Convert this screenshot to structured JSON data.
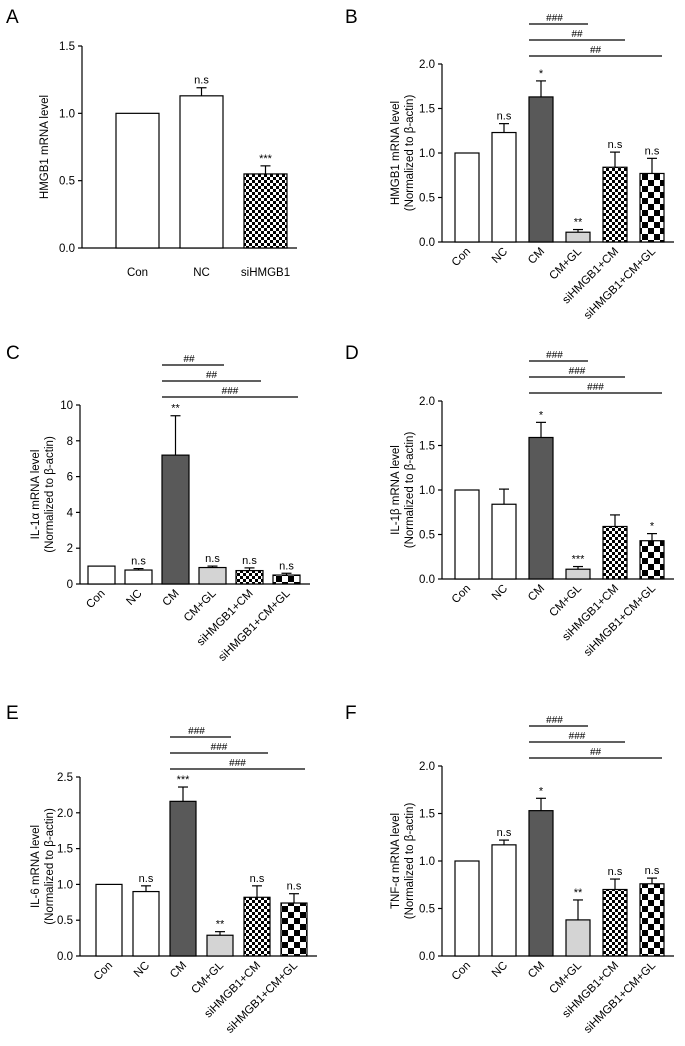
{
  "colors": {
    "white": "#ffffff",
    "dark": "#595959",
    "light": "#d4d4d4",
    "axis": "#000000"
  },
  "chart_data": [
    {
      "panel": "A",
      "type": "bar",
      "categories": [
        "Con",
        "NC",
        "siHMGB1"
      ],
      "values": [
        1.0,
        1.13,
        0.55
      ],
      "errors": [
        0,
        0.06,
        0.06
      ],
      "fills": [
        "white",
        "white",
        "check"
      ],
      "sig": [
        "",
        "n.s",
        "***"
      ],
      "ylim": [
        0,
        1.5
      ],
      "yticks": [
        0,
        0.5,
        1.0,
        1.5
      ],
      "ytick_labels": [
        "0.0",
        "0.5",
        "1.0",
        "1.5"
      ],
      "ylabel": [
        "HMGB1 mRNA level"
      ],
      "brackets": [],
      "rotate_x": false
    },
    {
      "panel": "B",
      "type": "bar",
      "categories": [
        "Con",
        "NC",
        "CM",
        "CM+GL",
        "siHMGB1+CM",
        "siHMGB1+CM+GL"
      ],
      "values": [
        1.0,
        1.23,
        1.63,
        0.11,
        0.84,
        0.77
      ],
      "errors": [
        0,
        0.1,
        0.18,
        0.03,
        0.17,
        0.17
      ],
      "fills": [
        "white",
        "white",
        "dark",
        "light",
        "check",
        "bigcheck"
      ],
      "sig": [
        "",
        "n.s",
        "*",
        "**",
        "n.s",
        "n.s"
      ],
      "ylim": [
        0,
        2.0
      ],
      "yticks": [
        0,
        0.5,
        1.0,
        1.5,
        2.0
      ],
      "ytick_labels": [
        "0.0",
        "0.5",
        "1.0",
        "1.5",
        "2.0"
      ],
      "ylabel": [
        "HMGB1 mRNA level",
        "(Normalized to β-actin)"
      ],
      "brackets": [
        {
          "to": 3,
          "label": "###"
        },
        {
          "to": 4,
          "label": "##"
        },
        {
          "to": 5,
          "label": "##"
        }
      ],
      "rotate_x": true
    },
    {
      "panel": "C",
      "type": "bar",
      "categories": [
        "Con",
        "NC",
        "CM",
        "CM+GL",
        "siHMGB1+CM",
        "siHMGB1+CM+GL"
      ],
      "values": [
        1.0,
        0.78,
        7.2,
        0.92,
        0.75,
        0.5
      ],
      "errors": [
        0,
        0.08,
        2.2,
        0.08,
        0.15,
        0.1
      ],
      "fills": [
        "white",
        "white",
        "dark",
        "light",
        "check",
        "bigcheck"
      ],
      "sig": [
        "",
        "n.s",
        "**",
        "n.s",
        "n.s",
        "n.s"
      ],
      "ylim": [
        0,
        10
      ],
      "yticks": [
        0,
        2,
        4,
        6,
        8,
        10
      ],
      "ytick_labels": [
        "0",
        "2",
        "4",
        "6",
        "8",
        "10"
      ],
      "ylabel": [
        "IL-1α mRNA level",
        "(Normalized to β-actin)"
      ],
      "brackets": [
        {
          "to": 3,
          "label": "##"
        },
        {
          "to": 4,
          "label": "##"
        },
        {
          "to": 5,
          "label": "###"
        }
      ],
      "rotate_x": true
    },
    {
      "panel": "D",
      "type": "bar",
      "categories": [
        "Con",
        "NC",
        "CM",
        "CM+GL",
        "siHMGB1+CM",
        "siHMGB1+CM+GL"
      ],
      "values": [
        1.0,
        0.84,
        1.59,
        0.11,
        0.59,
        0.43
      ],
      "errors": [
        0,
        0.17,
        0.17,
        0.03,
        0.13,
        0.08
      ],
      "fills": [
        "white",
        "white",
        "dark",
        "light",
        "check",
        "bigcheck"
      ],
      "sig": [
        "",
        "",
        "*",
        "***",
        "",
        "*"
      ],
      "ylim": [
        0,
        2.0
      ],
      "yticks": [
        0,
        0.5,
        1.0,
        1.5,
        2.0
      ],
      "ytick_labels": [
        "0.0",
        "0.5",
        "1.0",
        "1.5",
        "2.0"
      ],
      "ylabel": [
        "IL-1β mRNA level",
        "(Normalized to β-actin)"
      ],
      "brackets": [
        {
          "to": 3,
          "label": "###"
        },
        {
          "to": 4,
          "label": "###"
        },
        {
          "to": 5,
          "label": "###"
        }
      ],
      "rotate_x": true
    },
    {
      "panel": "E",
      "type": "bar",
      "categories": [
        "Con",
        "NC",
        "CM",
        "CM+GL",
        "siHMGB1+CM",
        "siHMGB1+CM+GL"
      ],
      "values": [
        1.0,
        0.9,
        2.16,
        0.29,
        0.82,
        0.74
      ],
      "errors": [
        0,
        0.08,
        0.2,
        0.05,
        0.16,
        0.13
      ],
      "fills": [
        "white",
        "white",
        "dark",
        "light",
        "check",
        "bigcheck"
      ],
      "sig": [
        "",
        "n.s",
        "***",
        "**",
        "n.s",
        "n.s"
      ],
      "ylim": [
        0,
        2.5
      ],
      "yticks": [
        0,
        0.5,
        1.0,
        1.5,
        2.0,
        2.5
      ],
      "ytick_labels": [
        "0.0",
        "0.5",
        "1.0",
        "1.5",
        "2.0",
        "2.5"
      ],
      "ylabel": [
        "IL-6 mRNA level",
        "(Normalized to β-actin)"
      ],
      "brackets": [
        {
          "to": 3,
          "label": "###"
        },
        {
          "to": 4,
          "label": "###"
        },
        {
          "to": 5,
          "label": "###"
        }
      ],
      "rotate_x": true
    },
    {
      "panel": "F",
      "type": "bar",
      "categories": [
        "Con",
        "NC",
        "CM",
        "CM+GL",
        "siHMGB1+CM",
        "siHMGB1+CM+GL"
      ],
      "values": [
        1.0,
        1.17,
        1.53,
        0.38,
        0.7,
        0.76
      ],
      "errors": [
        0,
        0.05,
        0.13,
        0.21,
        0.11,
        0.06
      ],
      "fills": [
        "white",
        "white",
        "dark",
        "light",
        "check",
        "bigcheck"
      ],
      "sig": [
        "",
        "n.s",
        "*",
        "**",
        "n.s",
        "n.s"
      ],
      "ylim": [
        0,
        2.0
      ],
      "yticks": [
        0,
        0.5,
        1.0,
        1.5,
        2.0
      ],
      "ytick_labels": [
        "0.0",
        "0.5",
        "1.0",
        "1.5",
        "2.0"
      ],
      "ylabel": [
        "TNF-α mRNA level",
        "(Normalized to β-actin)"
      ],
      "brackets": [
        {
          "to": 3,
          "label": "###"
        },
        {
          "to": 4,
          "label": "###"
        },
        {
          "to": 5,
          "label": "##"
        }
      ],
      "rotate_x": true
    }
  ]
}
